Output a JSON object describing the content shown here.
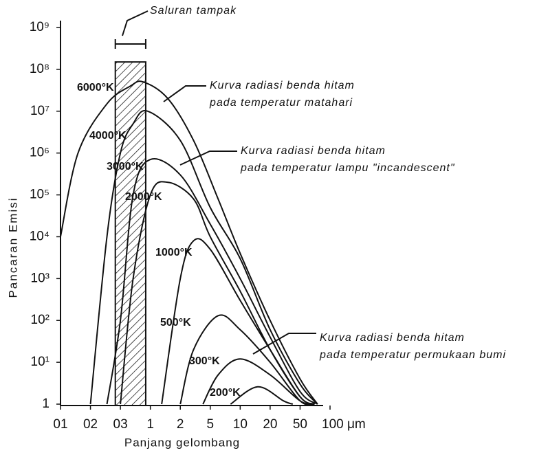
{
  "chart_data": {
    "type": "line",
    "x_label": "Panjang gelombang",
    "y_label": "Pancaran Emisi",
    "xscale": "log",
    "yscale": "log",
    "xlim": [
      0.1,
      100
    ],
    "ylim": [
      1,
      1000000000
    ],
    "xticks": [
      {
        "value": 0.1,
        "label": "01"
      },
      {
        "value": 0.2,
        "label": "02"
      },
      {
        "value": 0.3,
        "label": "03"
      },
      1,
      2,
      5,
      10,
      20,
      50,
      {
        "value": 100,
        "label": "100 μm"
      }
    ],
    "yticks": [
      1,
      {
        "value": 10,
        "label": "10¹"
      },
      {
        "value": 100,
        "label": "10²"
      },
      {
        "value": 1000,
        "label": "10³"
      },
      {
        "value": 10000,
        "label": "10⁴"
      },
      {
        "value": 100000,
        "label": "10⁵"
      },
      {
        "value": 1000000,
        "label": "10⁶"
      },
      {
        "value": 10000000,
        "label": "10⁷"
      },
      {
        "value": 100000000,
        "label": "10⁸"
      },
      {
        "value": 1000000000,
        "label": "10⁹"
      }
    ],
    "visible_band": {
      "label": "Saluran tampak",
      "x": [
        0.28,
        0.83
      ],
      "top": 150000000
    },
    "series": [
      {
        "name": "6000°K",
        "color": "#111",
        "x": [
          0.1,
          0.15,
          0.25,
          0.45,
          0.75,
          1.5,
          3,
          6,
          10,
          20,
          50,
          75
        ],
        "values": [
          10000,
          1000000,
          15000000,
          40000000,
          50000000,
          20000000,
          2000000,
          80000,
          4000,
          100,
          4,
          1
        ]
      },
      {
        "name": "4000°K",
        "color": "#111",
        "x": [
          0.2,
          0.25,
          0.3,
          0.5,
          0.9,
          2,
          5,
          10,
          20,
          50,
          75
        ],
        "values": [
          1,
          10000,
          1000000,
          5000000,
          10000000,
          2000000,
          50000,
          3000,
          60,
          3,
          1
        ]
      },
      {
        "name": "3000°K",
        "color": "#111",
        "x": [
          0.25,
          0.3,
          0.5,
          1,
          2,
          5,
          10,
          20,
          50,
          75
        ],
        "values": [
          1,
          100,
          100000,
          700000,
          300000,
          20000,
          1000,
          40,
          2,
          1
        ]
      },
      {
        "name": "2000°K",
        "color": "#111",
        "x": [
          0.3,
          0.5,
          1,
          1.5,
          3,
          5,
          10,
          20,
          50,
          70
        ],
        "values": [
          1,
          1000,
          100000,
          200000,
          80000,
          10000,
          500,
          20,
          1.5,
          1
        ]
      },
      {
        "name": "1000°K",
        "color": "#111",
        "x": [
          1.3,
          2,
          3,
          5,
          10,
          20,
          50,
          70
        ],
        "values": [
          1,
          1000,
          8000,
          5000,
          300,
          20,
          1.5,
          1
        ]
      },
      {
        "name": "500°K",
        "color": "#111",
        "x": [
          2,
          3,
          6,
          10,
          20,
          50,
          70
        ],
        "values": [
          1,
          20,
          130,
          60,
          10,
          1.2,
          1
        ]
      },
      {
        "name": "300°K",
        "color": "#111",
        "x": [
          4,
          6,
          10,
          20,
          50,
          70
        ],
        "values": [
          1,
          5,
          12,
          5,
          1.2,
          1
        ]
      },
      {
        "name": "200°K",
        "color": "#111",
        "x": [
          8,
          15,
          30,
          40
        ],
        "values": [
          1,
          2.6,
          1.2,
          1
        ]
      }
    ],
    "annotations": [
      {
        "lines": [
          "Kurva radiasi benda hitam",
          "pada temperatur matahari"
        ]
      },
      {
        "lines": [
          "Kurva radiasi benda hitam",
          "pada temperatur lampu \"incandescent\""
        ]
      },
      {
        "lines": [
          "Kurva radiasi benda hitam",
          "pada temperatur permukaan bumi"
        ]
      }
    ]
  }
}
